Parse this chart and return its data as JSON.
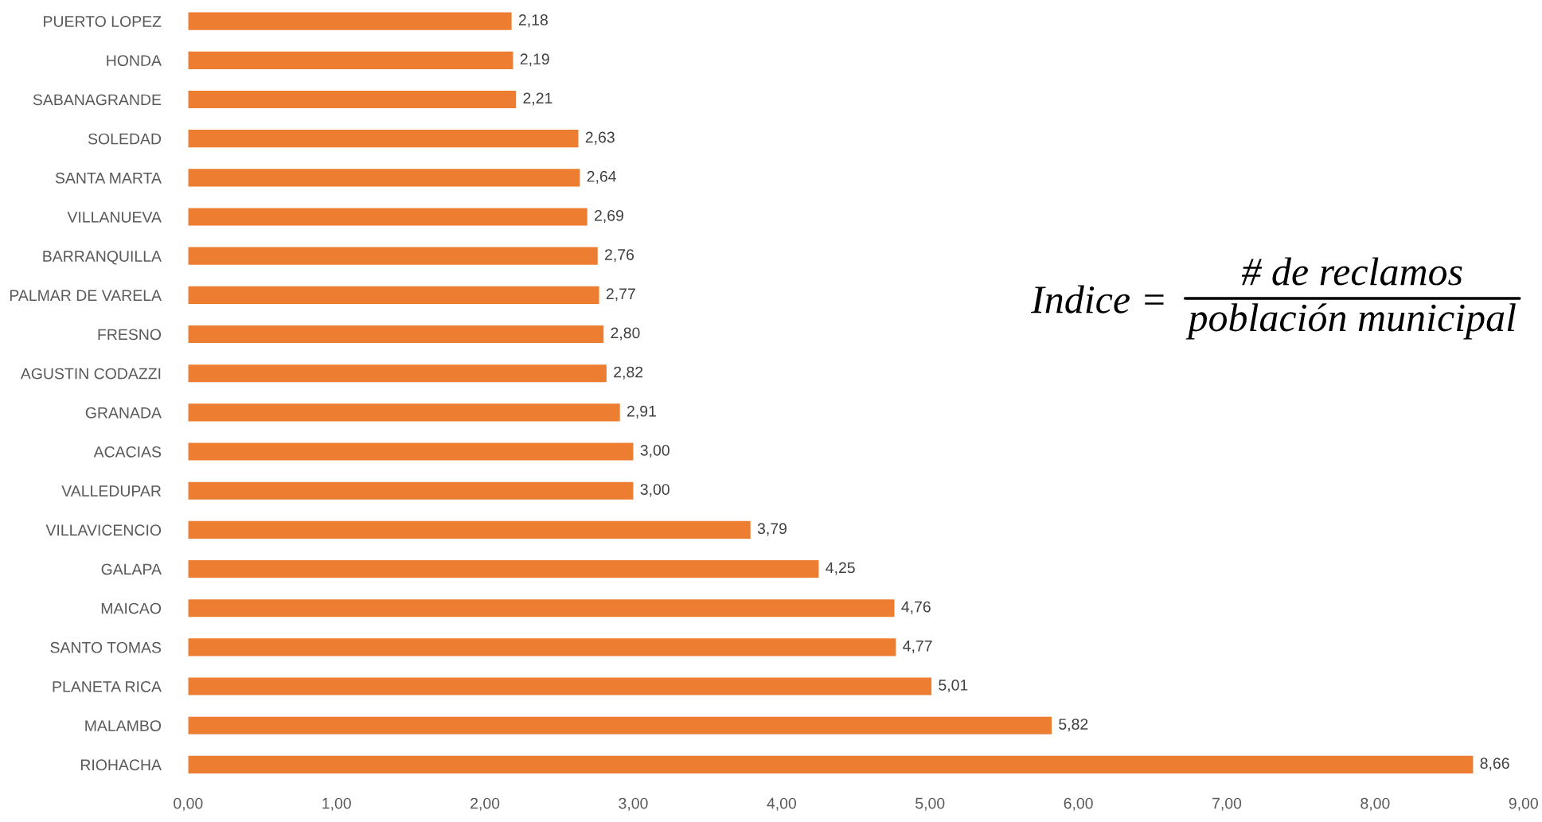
{
  "chart_data": {
    "type": "bar",
    "orientation": "horizontal",
    "categories": [
      "PUERTO LOPEZ",
      "HONDA",
      "SABANAGRANDE",
      "SOLEDAD",
      "SANTA MARTA",
      "VILLANUEVA",
      "BARRANQUILLA",
      "PALMAR DE VARELA",
      "FRESNO",
      "AGUSTIN CODAZZI",
      "GRANADA",
      "ACACIAS",
      "VALLEDUPAR",
      "VILLAVICENCIO",
      "GALAPA",
      "MAICAO",
      "SANTO TOMAS",
      "PLANETA RICA",
      "MALAMBO",
      "RIOHACHA"
    ],
    "values": [
      2.18,
      2.19,
      2.21,
      2.63,
      2.64,
      2.69,
      2.76,
      2.77,
      2.8,
      2.82,
      2.91,
      3.0,
      3.0,
      3.79,
      4.25,
      4.76,
      4.77,
      5.01,
      5.82,
      8.66
    ],
    "value_labels": [
      "2,18",
      "2,19",
      "2,21",
      "2,63",
      "2,64",
      "2,69",
      "2,76",
      "2,77",
      "2,80",
      "2,82",
      "2,91",
      "3,00",
      "3,00",
      "3,79",
      "4,25",
      "4,76",
      "4,77",
      "5,01",
      "5,82",
      "8,66"
    ],
    "color": "#ed7d31",
    "xlim": [
      0,
      9
    ],
    "xticks": [
      {
        "value": 0,
        "label": "0,00"
      },
      {
        "value": 1,
        "label": "1,00"
      },
      {
        "value": 2,
        "label": "2,00"
      },
      {
        "value": 3,
        "label": "3,00"
      },
      {
        "value": 4,
        "label": "4,00"
      },
      {
        "value": 5,
        "label": "5,00"
      },
      {
        "value": 6,
        "label": "6,00"
      },
      {
        "value": 7,
        "label": "7,00"
      },
      {
        "value": 8,
        "label": "8,00"
      },
      {
        "value": 9,
        "label": "9,00"
      }
    ],
    "annotations": [
      "Indice =",
      "# de reclamos",
      "población municipal"
    ]
  }
}
